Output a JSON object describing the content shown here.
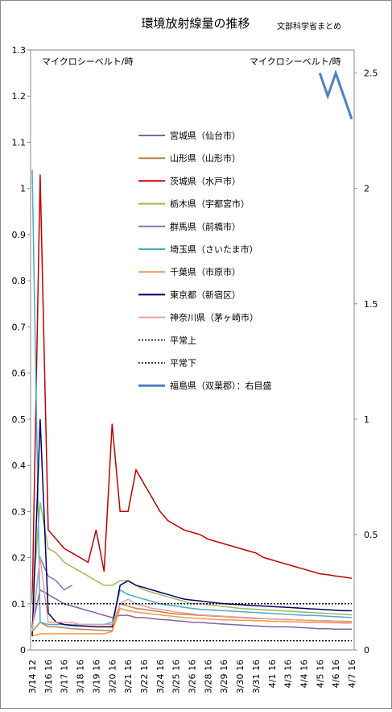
{
  "chart_data": {
    "type": "line",
    "title": "環境放射線量の推移",
    "subtitle": "文部科学省まとめ",
    "y_label": "マイクロシーベルト/時",
    "y2_label": "マイクロシーベルト/時",
    "categories": [
      "3/14 12",
      null,
      "3/16 16",
      null,
      "3/17 16",
      null,
      "3/18 16",
      null,
      "3/19 16",
      null,
      "3/20 16",
      null,
      "3/21 16",
      null,
      "3/22 16",
      null,
      "3/24 16",
      null,
      "3/25 16",
      null,
      "3/26 16",
      null,
      "3/28 16",
      null,
      "3/29 16",
      null,
      "3/30 16",
      null,
      "3/31 16",
      null,
      "4/1 16",
      null,
      "4/3 16",
      null,
      "4/4 16",
      null,
      "4/5 16",
      null,
      "4/6 16",
      null,
      "4/7 16"
    ],
    "ylim": [
      0,
      1.3
    ],
    "yticks": [
      0,
      0.1,
      0.2,
      0.3,
      0.4,
      0.5,
      0.6,
      0.7,
      0.8,
      0.9,
      1,
      1.1,
      1.2,
      1.3
    ],
    "y2lim": [
      0,
      2.6
    ],
    "y2ticks": [
      0,
      0.5,
      1,
      1.5,
      2,
      2.5
    ],
    "grid": false,
    "series": [
      {
        "name": "宮城県（仙台市）",
        "color": "#8064a2",
        "values": [
          0.05,
          0.13,
          0.12,
          0.11,
          0.1,
          0.095,
          0.09,
          0.085,
          0.08,
          0.075,
          0.07,
          0.075,
          0.075,
          0.07,
          0.07,
          0.068,
          0.066,
          0.065,
          0.063,
          0.062,
          0.06,
          0.06,
          0.058,
          0.057,
          0.056,
          0.055,
          0.054,
          0.053,
          0.052,
          0.051,
          0.05,
          0.05,
          0.05,
          0.049,
          0.048,
          0.047,
          0.046,
          0.046,
          0.045,
          0.045,
          0.045
        ]
      },
      {
        "name": "山形県（山形市）",
        "color": "#c0804d",
        "values": [
          0.04,
          0.06,
          0.05,
          0.05,
          0.048,
          0.046,
          0.045,
          0.044,
          0.043,
          0.042,
          0.042,
          0.1,
          0.095,
          0.09,
          0.088,
          0.085,
          0.083,
          0.08,
          0.078,
          0.077,
          0.076,
          0.075,
          0.074,
          0.073,
          0.072,
          0.071,
          0.07,
          0.069,
          0.068,
          0.068,
          0.067,
          0.066,
          0.066,
          0.065,
          0.064,
          0.064,
          0.063,
          0.063,
          0.062,
          0.062,
          0.061
        ]
      },
      {
        "name": "茨城県（水戸市）",
        "color": "#c00000",
        "values": [
          0.1,
          1.03,
          0.26,
          0.24,
          0.22,
          0.21,
          0.2,
          0.19,
          0.26,
          0.17,
          0.49,
          0.3,
          0.3,
          0.39,
          0.36,
          0.33,
          0.3,
          0.28,
          0.27,
          0.26,
          0.255,
          0.25,
          0.24,
          0.235,
          0.23,
          0.225,
          0.22,
          0.215,
          0.21,
          0.2,
          0.195,
          0.19,
          0.185,
          0.18,
          0.175,
          0.17,
          0.165,
          0.163,
          0.16,
          0.158,
          0.155
        ]
      },
      {
        "name": "栃木県（宇都宮市）",
        "color": "#9bbb59",
        "values": [
          0.1,
          0.32,
          0.22,
          0.21,
          0.19,
          0.18,
          0.17,
          0.16,
          0.15,
          0.14,
          0.14,
          0.15,
          0.15,
          0.14,
          0.13,
          0.125,
          0.12,
          0.115,
          0.11,
          0.105,
          0.1,
          0.1,
          0.098,
          0.096,
          0.094,
          0.092,
          0.09,
          0.089,
          0.088,
          0.087,
          0.086,
          0.085,
          0.084,
          0.083,
          0.082,
          0.081,
          0.08,
          0.079,
          0.078,
          0.077,
          0.076
        ]
      },
      {
        "name": "群馬県（前橋市）",
        "color": "#8c6fb0",
        "values": [
          0.05,
          0.2,
          0.16,
          0.15,
          0.13,
          0.14,
          null,
          null,
          null,
          null,
          null,
          null,
          null,
          null,
          null,
          null,
          null,
          null,
          null,
          null,
          null,
          null,
          null,
          null,
          null,
          null,
          null,
          null,
          null,
          null,
          null,
          null,
          null,
          null,
          null,
          null,
          null,
          null,
          null,
          null,
          null
        ]
      },
      {
        "name": "埼玉県（さいたま市）",
        "color": "#4bacc6",
        "values": [
          1.04,
          0.06,
          0.055,
          0.055,
          0.055,
          0.055,
          0.055,
          0.055,
          0.055,
          0.055,
          0.06,
          0.13,
          0.12,
          0.115,
          0.11,
          0.105,
          0.1,
          0.097,
          0.095,
          0.092,
          0.09,
          0.088,
          0.087,
          0.086,
          0.085,
          0.084,
          0.083,
          0.082,
          0.081,
          0.08,
          0.079,
          0.078,
          0.077,
          0.076,
          0.075,
          0.075,
          0.074,
          0.073,
          0.072,
          0.071,
          0.07
        ]
      },
      {
        "name": "千葉県（市原市）",
        "color": "#f79646",
        "values": [
          0.03,
          0.035,
          0.035,
          0.035,
          0.035,
          0.035,
          0.035,
          0.035,
          0.035,
          0.035,
          0.04,
          0.09,
          0.085,
          0.082,
          0.08,
          0.078,
          0.076,
          0.074,
          0.072,
          0.07,
          0.069,
          0.068,
          0.067,
          0.066,
          0.065,
          0.065,
          0.064,
          0.064,
          0.063,
          0.063,
          0.062,
          0.062,
          0.061,
          0.061,
          0.06,
          0.06,
          0.06,
          0.059,
          0.059,
          0.058,
          0.058
        ]
      },
      {
        "name": "東京都（新宿区）",
        "color": "#000066",
        "values": [
          0.03,
          0.5,
          0.08,
          0.06,
          0.055,
          0.053,
          0.052,
          0.051,
          0.05,
          0.05,
          0.05,
          0.14,
          0.15,
          0.14,
          0.135,
          0.13,
          0.125,
          0.12,
          0.115,
          0.11,
          0.108,
          0.106,
          0.104,
          0.102,
          0.1,
          0.099,
          0.098,
          0.097,
          0.096,
          0.095,
          0.094,
          0.093,
          0.092,
          0.091,
          0.09,
          0.089,
          0.088,
          0.087,
          0.086,
          0.085,
          0.085
        ]
      },
      {
        "name": "神奈川県（茅ヶ崎市）",
        "color": "#e6a0a0",
        "values": [
          0.04,
          0.2,
          0.06,
          0.06,
          0.06,
          0.06,
          0.055,
          0.055,
          0.055,
          0.055,
          0.055,
          0.1,
          0.11,
          0.1,
          0.095,
          0.09,
          0.088,
          0.085,
          0.082,
          0.08,
          0.078,
          0.076,
          0.075,
          0.074,
          0.073,
          0.072,
          0.071,
          0.07,
          0.069,
          0.068,
          0.067,
          0.066,
          0.065,
          0.065,
          0.064,
          0.063,
          0.063,
          0.062,
          0.062,
          0.061,
          0.06
        ]
      },
      {
        "name": "平常上",
        "color": "#000000",
        "dash": true,
        "values": [
          0.1,
          0.1,
          0.1,
          0.1,
          0.1,
          0.1,
          0.1,
          0.1,
          0.1,
          0.1,
          0.1,
          0.1,
          0.1,
          0.1,
          0.1,
          0.1,
          0.1,
          0.1,
          0.1,
          0.1,
          0.1,
          0.1,
          0.1,
          0.1,
          0.1,
          0.1,
          0.1,
          0.1,
          0.1,
          0.1,
          0.1,
          0.1,
          0.1,
          0.1,
          0.1,
          0.1,
          0.1,
          0.1,
          0.1,
          0.1,
          0.1
        ]
      },
      {
        "name": "平常下",
        "color": "#000000",
        "dash": true,
        "values": [
          0.02,
          0.02,
          0.02,
          0.02,
          0.02,
          0.02,
          0.02,
          0.02,
          0.02,
          0.02,
          0.02,
          0.02,
          0.02,
          0.02,
          0.02,
          0.02,
          0.02,
          0.02,
          0.02,
          0.02,
          0.02,
          0.02,
          0.02,
          0.02,
          0.02,
          0.02,
          0.02,
          0.02,
          0.02,
          0.02,
          0.02,
          0.02,
          0.02,
          0.02,
          0.02,
          0.02,
          0.02,
          0.02,
          0.02,
          0.02,
          0.02
        ]
      },
      {
        "name": "福島県（双葉郡）：右目盛",
        "color": "#4f81bd",
        "axis": "y2",
        "width": 3,
        "values": [
          null,
          null,
          null,
          null,
          null,
          null,
          null,
          null,
          null,
          null,
          null,
          null,
          null,
          null,
          null,
          null,
          null,
          null,
          null,
          null,
          null,
          null,
          null,
          null,
          null,
          null,
          null,
          null,
          null,
          null,
          null,
          null,
          null,
          null,
          null,
          null,
          2.5,
          2.4,
          2.5,
          2.4,
          2.3
        ]
      }
    ]
  }
}
